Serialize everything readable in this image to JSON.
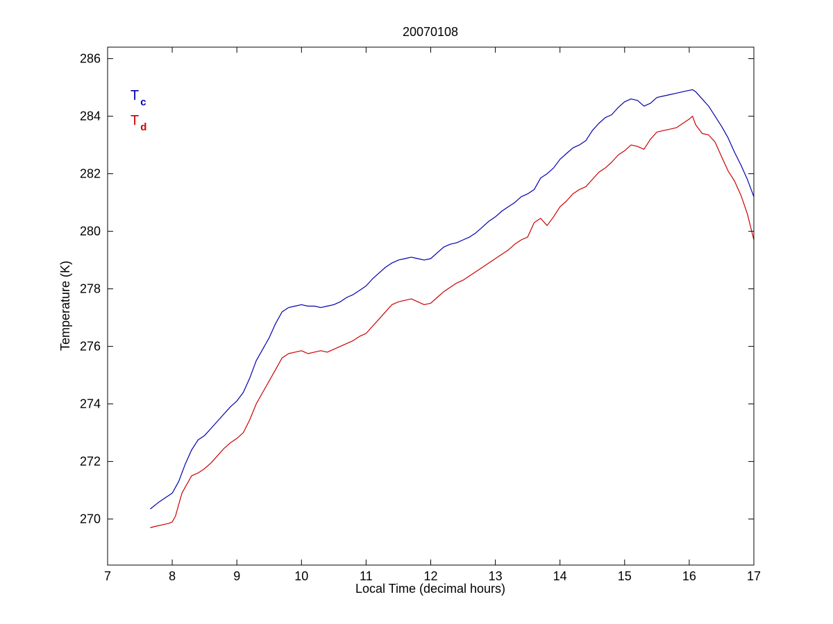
{
  "chart_data": {
    "type": "line",
    "title": "20070108",
    "xlabel": "Local Time (decimal hours)",
    "ylabel": "Temperature (K)",
    "xlim": [
      7,
      17
    ],
    "ylim": [
      268.4,
      286.4
    ],
    "xticks": [
      7,
      8,
      9,
      10,
      11,
      12,
      13,
      14,
      15,
      16,
      17
    ],
    "yticks": [
      270,
      272,
      274,
      276,
      278,
      280,
      282,
      284,
      286
    ],
    "grid": false,
    "legend_position": "top-left",
    "series": [
      {
        "name": "T",
        "subscript": "c",
        "color": "#0000aa",
        "x": [
          7.66,
          7.8,
          8.0,
          8.1,
          8.2,
          8.3,
          8.4,
          8.5,
          8.6,
          8.7,
          8.8,
          8.9,
          9.0,
          9.1,
          9.2,
          9.3,
          9.4,
          9.5,
          9.6,
          9.7,
          9.8,
          9.9,
          10.0,
          10.1,
          10.2,
          10.3,
          10.4,
          10.5,
          10.6,
          10.7,
          10.8,
          10.9,
          11.0,
          11.1,
          11.2,
          11.3,
          11.4,
          11.5,
          11.6,
          11.7,
          11.8,
          11.9,
          12.0,
          12.1,
          12.2,
          12.3,
          12.4,
          12.5,
          12.6,
          12.7,
          12.8,
          12.9,
          13.0,
          13.1,
          13.2,
          13.3,
          13.4,
          13.5,
          13.6,
          13.7,
          13.8,
          13.9,
          14.0,
          14.1,
          14.2,
          14.3,
          14.4,
          14.5,
          14.6,
          14.7,
          14.8,
          14.9,
          15.0,
          15.1,
          15.2,
          15.3,
          15.4,
          15.5,
          15.6,
          15.7,
          15.8,
          15.9,
          16.0,
          16.05,
          16.1,
          16.2,
          16.3,
          16.4,
          16.5,
          16.6,
          16.7,
          16.8,
          16.9,
          17.0
        ],
        "y": [
          270.35,
          270.6,
          270.9,
          271.3,
          271.9,
          272.4,
          272.75,
          272.9,
          273.15,
          273.4,
          273.65,
          273.9,
          274.1,
          274.4,
          274.9,
          275.5,
          275.9,
          276.3,
          276.8,
          277.2,
          277.35,
          277.4,
          277.45,
          277.4,
          277.4,
          277.35,
          277.4,
          277.45,
          277.55,
          277.7,
          277.8,
          277.95,
          278.1,
          278.35,
          278.55,
          278.75,
          278.9,
          279.0,
          279.05,
          279.1,
          279.05,
          279.0,
          279.05,
          279.25,
          279.45,
          279.55,
          279.6,
          279.7,
          279.8,
          279.95,
          280.15,
          280.35,
          280.5,
          280.7,
          280.85,
          281.0,
          281.2,
          281.3,
          281.45,
          281.85,
          282.0,
          282.2,
          282.5,
          282.7,
          282.9,
          283.0,
          283.15,
          283.5,
          283.75,
          283.95,
          284.05,
          284.3,
          284.5,
          284.6,
          284.55,
          284.35,
          284.45,
          284.65,
          284.7,
          284.75,
          284.8,
          284.85,
          284.9,
          284.92,
          284.85,
          284.6,
          284.35,
          284.0,
          283.65,
          283.25,
          282.75,
          282.3,
          281.8,
          281.2
        ]
      },
      {
        "name": "T",
        "subscript": "d",
        "color": "#cc0000",
        "x": [
          7.66,
          7.75,
          7.85,
          7.95,
          8.0,
          8.05,
          8.1,
          8.15,
          8.2,
          8.25,
          8.3,
          8.4,
          8.5,
          8.6,
          8.7,
          8.8,
          8.9,
          9.0,
          9.1,
          9.2,
          9.3,
          9.4,
          9.5,
          9.6,
          9.7,
          9.8,
          9.9,
          10.0,
          10.1,
          10.2,
          10.3,
          10.4,
          10.5,
          10.6,
          10.7,
          10.8,
          10.9,
          11.0,
          11.1,
          11.2,
          11.3,
          11.4,
          11.5,
          11.6,
          11.7,
          11.8,
          11.9,
          12.0,
          12.1,
          12.2,
          12.3,
          12.4,
          12.5,
          12.6,
          12.7,
          12.8,
          12.9,
          13.0,
          13.1,
          13.2,
          13.3,
          13.4,
          13.5,
          13.6,
          13.7,
          13.8,
          13.9,
          14.0,
          14.1,
          14.2,
          14.3,
          14.4,
          14.5,
          14.6,
          14.7,
          14.8,
          14.9,
          15.0,
          15.1,
          15.2,
          15.3,
          15.4,
          15.5,
          15.6,
          15.7,
          15.8,
          15.9,
          16.0,
          16.05,
          16.1,
          16.2,
          16.3,
          16.4,
          16.5,
          16.6,
          16.7,
          16.8,
          16.9,
          17.0
        ],
        "y": [
          269.7,
          269.75,
          269.8,
          269.85,
          269.9,
          270.1,
          270.5,
          270.9,
          271.1,
          271.3,
          271.5,
          271.6,
          271.75,
          271.95,
          272.2,
          272.45,
          272.65,
          272.8,
          273.0,
          273.45,
          274.0,
          274.4,
          274.8,
          275.2,
          275.6,
          275.75,
          275.8,
          275.85,
          275.75,
          275.8,
          275.85,
          275.8,
          275.9,
          276.0,
          276.1,
          276.2,
          276.35,
          276.45,
          276.7,
          276.95,
          277.2,
          277.45,
          277.55,
          277.6,
          277.65,
          277.55,
          277.45,
          277.5,
          277.7,
          277.9,
          278.05,
          278.2,
          278.3,
          278.45,
          278.6,
          278.75,
          278.9,
          279.05,
          279.2,
          279.35,
          279.55,
          279.7,
          279.8,
          280.3,
          280.45,
          280.2,
          280.5,
          280.85,
          281.05,
          281.3,
          281.45,
          281.55,
          281.8,
          282.05,
          282.2,
          282.4,
          282.65,
          282.8,
          283.0,
          282.95,
          282.85,
          283.2,
          283.45,
          283.5,
          283.55,
          283.6,
          283.75,
          283.9,
          284.0,
          283.7,
          283.4,
          283.35,
          283.1,
          282.6,
          282.1,
          281.75,
          281.25,
          280.6,
          279.7
        ]
      }
    ]
  }
}
